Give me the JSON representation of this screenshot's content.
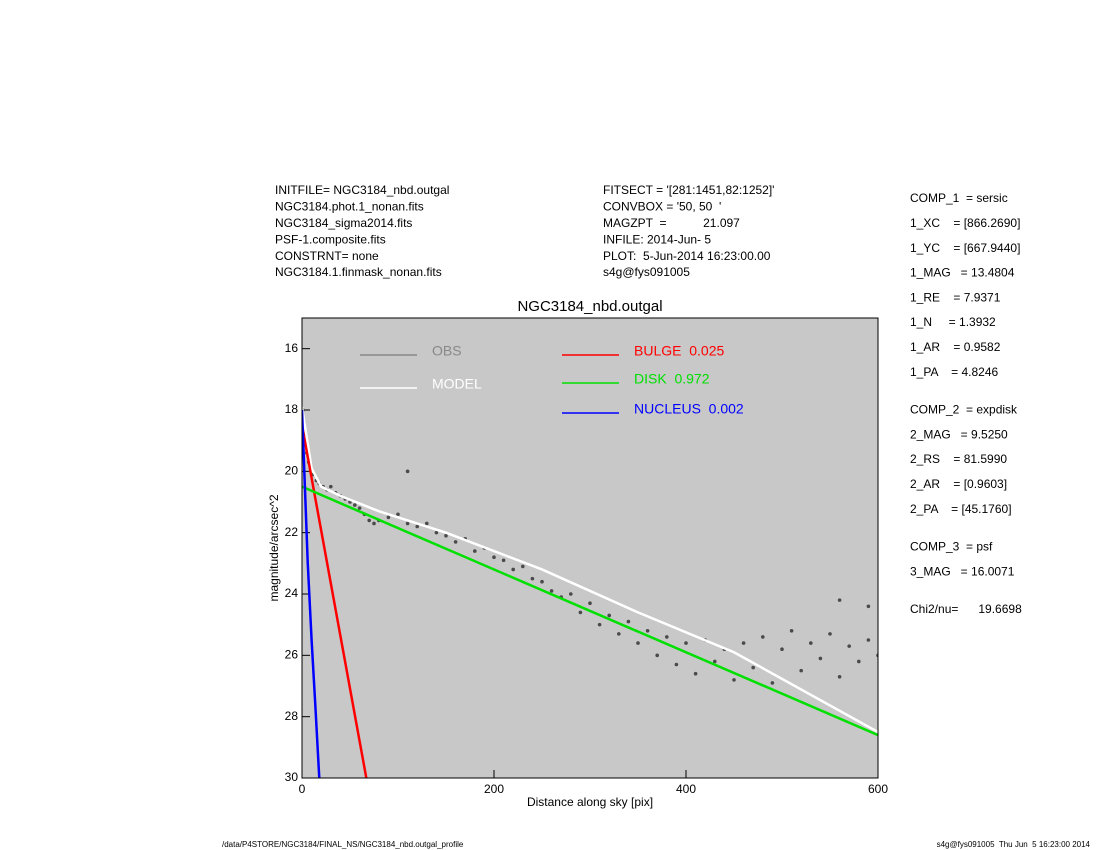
{
  "header_left": [
    "INITFILE= NGC3184_nbd.outgal",
    "NGC3184.phot.1_nonan.fits",
    "NGC3184_sigma2014.fits",
    "PSF-1.composite.fits",
    "CONSTRNT= none",
    "NGC3184.1.finmask_nonan.fits"
  ],
  "header_right": [
    "FITSECT = '[281:1451,82:1252]'",
    "CONVBOX = '50, 50  '",
    "MAGZPT  =           21.097",
    "INFILE: 2014-Jun- 5",
    "PLOT:  5-Jun-2014 16:23:00.00",
    "s4g@fys091005"
  ],
  "fit_parameters": [
    "COMP_1  = sersic",
    "1_XC    = [866.2690]",
    "1_YC    = [667.9440]",
    "1_MAG   = 13.4804",
    "1_RE    = 7.9371",
    "1_N     = 1.3932",
    "1_AR    = 0.9582",
    "1_PA    = 4.8246",
    "COMP_2  = expdisk",
    "2_MAG   = 9.5250",
    "2_RS    = 81.5990",
    "2_AR    = [0.9603]",
    "2_PA    = [45.1760]",
    "COMP_3  = psf",
    "3_MAG   = 16.0071",
    "Chi2/nu=      19.6698"
  ],
  "footer": {
    "left": "/data/P4STORE/NGC3184/FINAL_NS/NGC3184_nbd.outgal_profile",
    "right": "s4g@fys091005  Thu Jun  5 16:23:00 2014"
  },
  "chart_data": {
    "type": "scatter",
    "title": "NGC3184_nbd.outgal",
    "x_label": "Distance along sky [pix]",
    "y_label": "magnitude/arcsec^2",
    "xlim": [
      0,
      600
    ],
    "xticks": [
      0,
      200,
      400,
      600
    ],
    "ylim": [
      30,
      15
    ],
    "yticks": [
      16,
      18,
      20,
      22,
      24,
      26,
      28,
      30
    ],
    "background": "#c8c8c8",
    "series": [
      {
        "name": "OBS",
        "color": "#888888",
        "marker_color": "#4a4a4a",
        "style": "points",
        "x": [
          1,
          2,
          3,
          4,
          5,
          7,
          9,
          12,
          15,
          18,
          22,
          26,
          30,
          35,
          40,
          45,
          50,
          55,
          60,
          65,
          70,
          75,
          80,
          90,
          100,
          110,
          120,
          130,
          140,
          150,
          160,
          170,
          180,
          190,
          200,
          210,
          220,
          230,
          240,
          250,
          260,
          270,
          280,
          290,
          300,
          310,
          320,
          330,
          340,
          350,
          360,
          370,
          380,
          390,
          400,
          410,
          420,
          430,
          440,
          450,
          460,
          470,
          480,
          490,
          500,
          510,
          520,
          530,
          540,
          550,
          560,
          570,
          580,
          590,
          600,
          110,
          560,
          590
        ],
        "values": [
          18.0,
          18.4,
          18.8,
          19.1,
          19.4,
          19.7,
          19.9,
          20.1,
          20.3,
          20.4,
          20.5,
          20.6,
          20.5,
          20.7,
          20.8,
          20.9,
          21.0,
          21.1,
          21.2,
          21.4,
          21.6,
          21.7,
          21.6,
          21.5,
          21.4,
          21.7,
          21.8,
          21.7,
          22.0,
          22.1,
          22.3,
          22.2,
          22.6,
          22.5,
          22.8,
          22.9,
          23.2,
          23.1,
          23.5,
          23.6,
          23.9,
          24.1,
          24.0,
          24.6,
          24.3,
          25.0,
          24.7,
          25.3,
          24.9,
          25.6,
          25.2,
          26.0,
          25.4,
          26.3,
          25.6,
          26.6,
          25.5,
          26.2,
          25.8,
          26.8,
          25.6,
          26.4,
          25.4,
          26.9,
          25.8,
          25.2,
          26.5,
          25.6,
          26.1,
          25.3,
          26.7,
          25.7,
          26.2,
          25.5,
          26.0,
          20.0,
          24.2,
          24.4
        ]
      },
      {
        "name": "MODEL",
        "color": "#ffffff",
        "style": "line",
        "x": [
          0,
          10,
          20,
          40,
          80,
          150,
          250,
          350,
          450,
          600
        ],
        "values": [
          17.9,
          19.9,
          20.5,
          20.8,
          21.3,
          22.0,
          23.2,
          24.6,
          25.9,
          28.5
        ]
      },
      {
        "name": "BULGE  0.025",
        "color": "#ff0000",
        "style": "line",
        "x": [
          0,
          67
        ],
        "values": [
          18.5,
          30
        ]
      },
      {
        "name": "DISK  0.972",
        "color": "#00e000",
        "style": "line",
        "x": [
          0,
          600
        ],
        "values": [
          20.5,
          28.6
        ]
      },
      {
        "name": "NUCLEUS  0.002",
        "color": "#0000ff",
        "style": "line",
        "x": [
          0,
          3,
          6,
          10,
          14,
          18
        ],
        "values": [
          18.0,
          20.5,
          23.0,
          25.5,
          27.7,
          30.0
        ]
      }
    ]
  }
}
